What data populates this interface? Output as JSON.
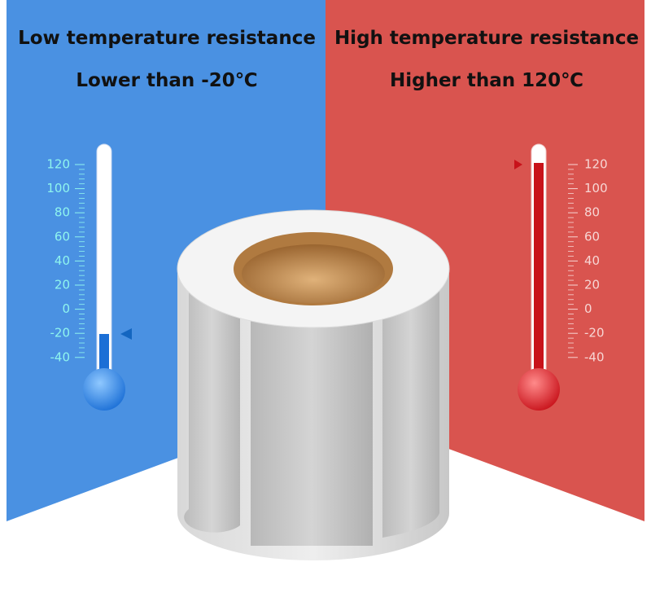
{
  "left": {
    "title": "Low temperature resistance",
    "subtitle": "Lower than -20℃",
    "scale": [
      120,
      100,
      80,
      60,
      40,
      20,
      0,
      -20,
      -40
    ]
  },
  "right": {
    "title": "High temperature resistance",
    "subtitle": "Higher than 120℃",
    "scale": [
      120,
      100,
      80,
      60,
      40,
      20,
      0,
      -20,
      -40
    ]
  }
}
